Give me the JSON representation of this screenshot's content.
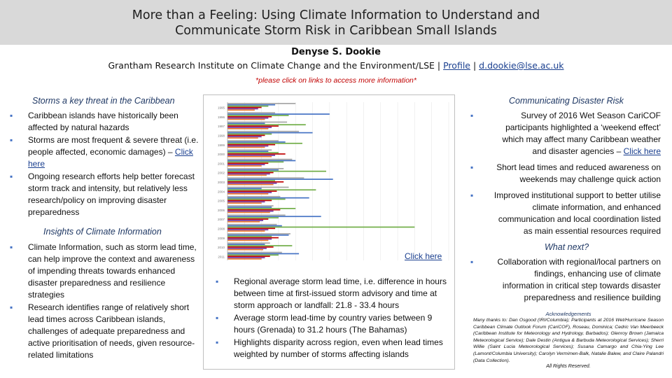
{
  "header": {
    "title_line1": "More than a Feeling: Using Climate Information to Understand and",
    "title_line2": "Communicate Storm Risk in Caribbean Small Islands",
    "author": "Denyse S. Dookie",
    "affiliation": "Grantham Research Institute on Climate Change and the Environment/LSE |",
    "sep": "|",
    "profile_link": "Profile",
    "email_link": "d.dookie@lse.ac.uk",
    "note": "*please click on links to access more information*"
  },
  "left": {
    "storms_heading": "Storms a key threat in the Caribbean",
    "storms_bullets": [
      "Caribbean islands have historically been affected by natural hazards",
      "Storms are most frequent & severe threat (i.e. people affected, economic damages) –",
      "Ongoing research efforts help better forecast storm track and intensity, but relatively less research/policy on improving disaster preparedness"
    ],
    "storms_link": "Click here",
    "insights_heading": "Insights of Climate Information",
    "insights_bullets": [
      "Climate Information, such as storm lead time, can help improve the context and awareness of impending threats towards enhanced disaster preparedness and resilience strategies",
      "Research identifies range of relatively short lead times across Caribbean islands, challenges of adequate preparedness and active prioritisation of needs, given resource-related limitations"
    ]
  },
  "center": {
    "chart_link": "Click here",
    "bullets": [
      "Regional average storm lead time, i.e. difference in hours between time at first-issued storm advisory and time at storm approach or landfall: 21.8 - 33.4 hours",
      "Average storm lead-time by country varies between 9 hours (Grenada) to 31.2 hours (The Bahamas)",
      "Highlights disparity across region, even when lead times weighted by number of storms affecting islands"
    ]
  },
  "right": {
    "comm_heading": "Communicating Disaster Risk",
    "comm_bullets": [
      "Survey of 2016 Wet Season CariCOF participants highlighted a ‘weekend effect’ which may affect many Caribbean weather and disaster agencies –",
      "Short lead times and reduced awareness on weekends may challenge quick action",
      "Improved institutional support to better utilise climate information, and enhanced communication and local coordination listed as main essential resources required"
    ],
    "comm_link": "Click here",
    "next_heading": "What next?",
    "next_bullets": [
      "Collaboration with regional/local partners on findings, enhancing use of climate information in critical step towards disaster preparedness and resilience building"
    ],
    "ack_heading": "Acknowledgements",
    "ack_body": "Many thanks to: Dan Osgood (IRI/Columbia); Participants at 2016 Wet/Hurricane Season Caribbean Climate Outlook Forum (CariCOF), Roseau, Dominica; Cedric Van Meerbeeck (Caribbean Institute for Meteorology and Hydrology, Barbados); Glenroy Brown (Jamaica Meteorological Service); Dale Destin (Antigua & Barbuda Meteorological Services); Sherri Willie (Saint Lucia Meteorological Services); Susana Camargo and Chia-Ying Lee (Lamont/Columbia University); Carolyn Vermimen-Balk, Natalie Balew, and Claire Palandri (Data Collection).",
    "ack_sig": "All Rights Reserved."
  },
  "chart_data": {
    "type": "bar",
    "orientation": "horizontal",
    "legend": "top-right",
    "grid": true,
    "categories": [
      "1995",
      "1996",
      "1997",
      "1998",
      "1999",
      "2000",
      "2001",
      "2002",
      "2003",
      "2004",
      "2005",
      "2006",
      "2007",
      "2008",
      "2009",
      "2010",
      "2011"
    ],
    "xlim": [
      0,
      130
    ],
    "series": [
      {
        "color": "#a6a6a6",
        "values": [
          40,
          28,
          35,
          42,
          30,
          26,
          38,
          33,
          45,
          36,
          31,
          27,
          34,
          29,
          37,
          25,
          32
        ]
      },
      {
        "color": "#4472c4",
        "values": [
          28,
          60,
          22,
          50,
          34,
          24,
          40,
          30,
          62,
          20,
          48,
          26,
          55,
          32,
          36,
          22,
          42
        ]
      },
      {
        "color": "#70ad47",
        "values": [
          24,
          36,
          46,
          26,
          44,
          30,
          33,
          58,
          28,
          52,
          34,
          40,
          30,
          110,
          26,
          38,
          30
        ]
      },
      {
        "color": "#c00000",
        "values": [
          20,
          26,
          30,
          22,
          28,
          34,
          24,
          27,
          33,
          29,
          26,
          31,
          24,
          28,
          30,
          27,
          25
        ]
      },
      {
        "color": "#7030a0",
        "values": [
          18,
          24,
          26,
          20,
          24,
          28,
          22,
          25,
          29,
          26,
          22,
          27,
          21,
          24,
          26,
          23,
          22
        ]
      },
      {
        "color": "#ed7d31",
        "values": [
          16,
          22,
          24,
          18,
          22,
          26,
          20,
          23,
          27,
          24,
          20,
          25,
          19,
          22,
          24,
          21,
          20
        ]
      }
    ]
  }
}
